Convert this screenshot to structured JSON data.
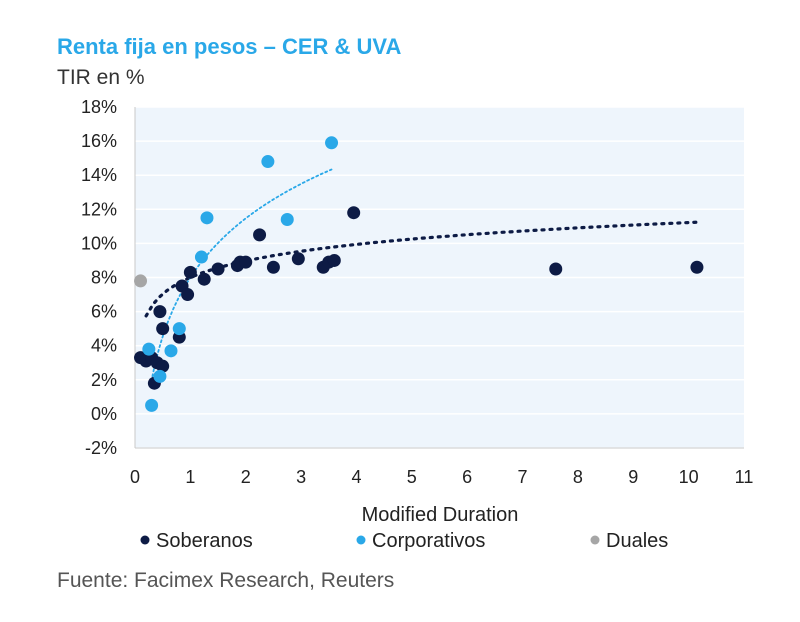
{
  "title": "Renta fija en pesos – CER & UVA",
  "subtitle": "TIR en %",
  "source": "Fuente: Facimex Research, Reuters",
  "chart_data": {
    "type": "scatter",
    "title": "Renta fija en pesos – CER & UVA",
    "ylabel": "TIR en %",
    "xlabel": "Modified Duration",
    "xlim": [
      0,
      11
    ],
    "ylim": [
      -2,
      18
    ],
    "x_ticks": [
      "0",
      "1",
      "2",
      "3",
      "4",
      "5",
      "6",
      "7",
      "8",
      "9",
      "10",
      "11"
    ],
    "y_ticks": [
      "-2%",
      "0%",
      "2%",
      "4%",
      "6%",
      "8%",
      "10%",
      "12%",
      "14%",
      "16%",
      "18%"
    ],
    "legend_position": "bottom",
    "series": [
      {
        "name": "Soberanos",
        "color": "#0d1b45",
        "points": [
          [
            0.1,
            3.3
          ],
          [
            0.2,
            3.1
          ],
          [
            0.3,
            3.3
          ],
          [
            0.35,
            1.8
          ],
          [
            0.4,
            3.0
          ],
          [
            0.45,
            6.0
          ],
          [
            0.5,
            2.8
          ],
          [
            0.5,
            5.0
          ],
          [
            0.8,
            4.5
          ],
          [
            0.85,
            7.5
          ],
          [
            0.95,
            7.0
          ],
          [
            1.0,
            8.3
          ],
          [
            1.25,
            7.9
          ],
          [
            1.5,
            8.5
          ],
          [
            1.85,
            8.7
          ],
          [
            1.9,
            8.9
          ],
          [
            2.0,
            8.9
          ],
          [
            2.25,
            10.5
          ],
          [
            2.5,
            8.6
          ],
          [
            2.95,
            9.1
          ],
          [
            3.4,
            8.6
          ],
          [
            3.5,
            8.9
          ],
          [
            3.6,
            9.0
          ],
          [
            3.95,
            11.8
          ],
          [
            7.6,
            8.5
          ],
          [
            10.15,
            8.6
          ]
        ],
        "trend": {
          "type": "log",
          "a": 8.0,
          "b": 1.4
        }
      },
      {
        "name": "Corporativos",
        "color": "#2aa8e8",
        "points": [
          [
            0.25,
            3.8
          ],
          [
            0.3,
            0.5
          ],
          [
            0.45,
            2.2
          ],
          [
            0.65,
            3.7
          ],
          [
            0.8,
            5.0
          ],
          [
            1.2,
            9.2
          ],
          [
            1.3,
            11.5
          ],
          [
            2.4,
            14.8
          ],
          [
            2.75,
            11.4
          ],
          [
            3.55,
            15.9
          ]
        ],
        "trend": {
          "type": "log",
          "a": 8.0,
          "b": 5.0
        }
      },
      {
        "name": "Duales",
        "color": "#a6a6a6",
        "points": [
          [
            0.1,
            7.8
          ]
        ]
      }
    ]
  }
}
